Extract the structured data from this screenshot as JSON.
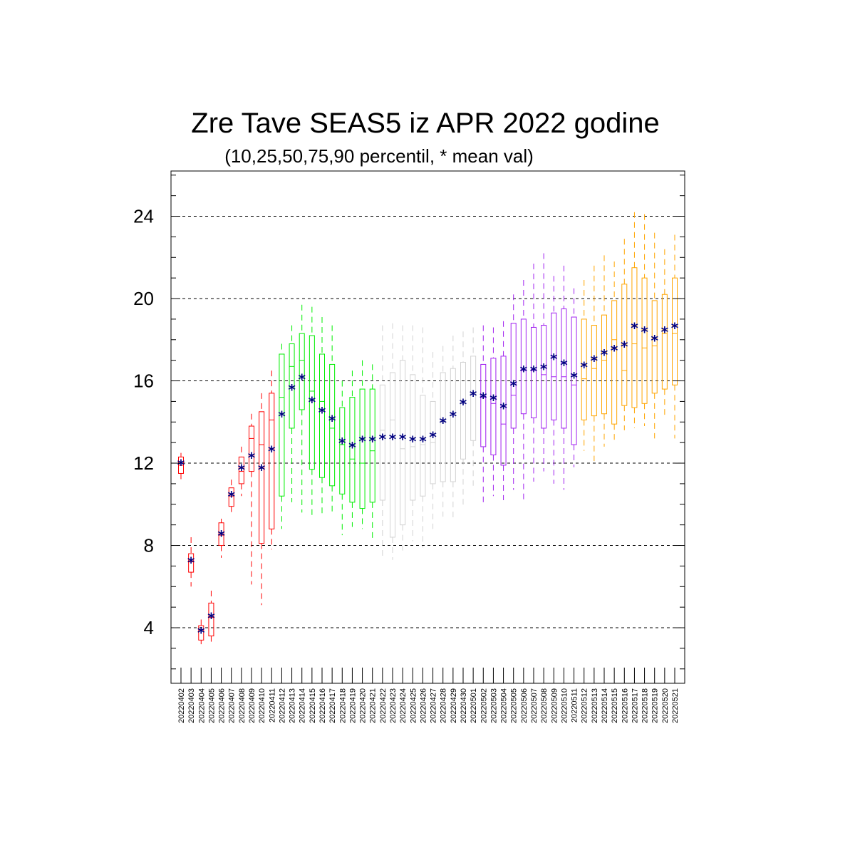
{
  "chart_data": {
    "type": "boxplot",
    "title": "Zre Tave SEAS5 iz APR 2022 godine",
    "subtitle": "(10,25,50,75,90 percentil, * mean val)",
    "xlabel": "",
    "ylabel": "",
    "ylim": [
      1.3,
      26.2
    ],
    "y_ticks": [
      4,
      8,
      12,
      16,
      20,
      24
    ],
    "grid": "dashed horizontal at labeled ticks",
    "categories": [
      "20220402",
      "20220403",
      "20220404",
      "20220405",
      "20220406",
      "20220407",
      "20220408",
      "20220409",
      "20220410",
      "20220411",
      "20220412",
      "20220413",
      "20220414",
      "20220415",
      "20220416",
      "20220417",
      "20220418",
      "20220419",
      "20220420",
      "20220421",
      "20220422",
      "20220423",
      "20220424",
      "20220425",
      "20220426",
      "20220427",
      "20220428",
      "20220429",
      "20220430",
      "20220501",
      "20220502",
      "20220503",
      "20220504",
      "20220505",
      "20220506",
      "20220507",
      "20220508",
      "20220509",
      "20220510",
      "20220511",
      "20220512",
      "20220513",
      "20220514",
      "20220515",
      "20220516",
      "20220517",
      "20220518",
      "20220519",
      "20220520",
      "20220521"
    ],
    "group_colors": {
      "red": "#ff0000",
      "green": "#00ee00",
      "gray": "#d3d3d3",
      "purple": "#a020f0",
      "orange": "#ffa500"
    },
    "mean_marker_color": "#000080",
    "boxes": [
      {
        "date": "20220402",
        "color": "red",
        "p10": 11.2,
        "p25": 11.5,
        "p50": 11.9,
        "p75": 12.3,
        "p90": 12.5,
        "mean": 11.95
      },
      {
        "date": "20220403",
        "color": "red",
        "p10": 6.0,
        "p25": 6.7,
        "p50": 7.2,
        "p75": 7.6,
        "p90": 8.4,
        "mean": 7.2
      },
      {
        "date": "20220404",
        "color": "red",
        "p10": 3.2,
        "p25": 3.4,
        "p50": 3.9,
        "p75": 4.1,
        "p90": 4.4,
        "mean": 3.8
      },
      {
        "date": "20220405",
        "color": "red",
        "p10": 3.2,
        "p25": 3.6,
        "p50": 4.5,
        "p75": 5.2,
        "p90": 5.8,
        "mean": 4.5
      },
      {
        "date": "20220406",
        "color": "red",
        "p10": 7.4,
        "p25": 8.0,
        "p50": 8.5,
        "p75": 9.1,
        "p90": 9.3,
        "mean": 8.5
      },
      {
        "date": "20220407",
        "color": "red",
        "p10": 9.5,
        "p25": 9.9,
        "p50": 10.4,
        "p75": 10.8,
        "p90": 11.2,
        "mean": 10.4
      },
      {
        "date": "20220408",
        "color": "red",
        "p10": 10.4,
        "p25": 11.0,
        "p50": 11.6,
        "p75": 12.3,
        "p90": 12.8,
        "mean": 11.7
      },
      {
        "date": "20220409",
        "color": "red",
        "p10": 6.1,
        "p25": 11.6,
        "p50": 13.2,
        "p75": 13.8,
        "p90": 14.4,
        "mean": 12.3
      },
      {
        "date": "20220410",
        "color": "red",
        "p10": 5.1,
        "p25": 8.1,
        "p50": 12.9,
        "p75": 14.5,
        "p90": 15.4,
        "mean": 11.7
      },
      {
        "date": "20220411",
        "color": "red",
        "p10": 7.8,
        "p25": 8.8,
        "p50": 14.1,
        "p75": 15.4,
        "p90": 16.5,
        "mean": 12.6
      },
      {
        "date": "20220412",
        "color": "green",
        "p10": 8.8,
        "p25": 10.4,
        "p50": 15.2,
        "p75": 17.3,
        "p90": 17.8,
        "mean": 14.3
      },
      {
        "date": "20220413",
        "color": "green",
        "p10": 10.1,
        "p25": 13.7,
        "p50": 16.7,
        "p75": 17.8,
        "p90": 18.7,
        "mean": 15.6
      },
      {
        "date": "20220414",
        "color": "green",
        "p10": 9.6,
        "p25": 14.6,
        "p50": 17.0,
        "p75": 18.3,
        "p90": 19.7,
        "mean": 16.1
      },
      {
        "date": "20220415",
        "color": "green",
        "p10": 9.4,
        "p25": 11.7,
        "p50": 15.5,
        "p75": 18.2,
        "p90": 19.6,
        "mean": 15.0
      },
      {
        "date": "20220416",
        "color": "green",
        "p10": 9.4,
        "p25": 11.3,
        "p50": 15.0,
        "p75": 17.3,
        "p90": 19.1,
        "mean": 14.5
      },
      {
        "date": "20220417",
        "color": "green",
        "p10": 9.6,
        "p25": 10.9,
        "p50": 13.7,
        "p75": 16.8,
        "p90": 18.7,
        "mean": 14.1
      },
      {
        "date": "20220418",
        "color": "green",
        "p10": 8.5,
        "p25": 10.5,
        "p50": 12.9,
        "p75": 14.7,
        "p90": 16.0,
        "mean": 13.0
      },
      {
        "date": "20220419",
        "color": "green",
        "p10": 8.9,
        "p25": 10.1,
        "p50": 12.2,
        "p75": 15.2,
        "p90": 16.5,
        "mean": 12.8
      },
      {
        "date": "20220420",
        "color": "green",
        "p10": 8.8,
        "p25": 9.8,
        "p50": 12.0,
        "p75": 15.6,
        "p90": 17.0,
        "mean": 13.1
      },
      {
        "date": "20220421",
        "color": "green",
        "p10": 8.3,
        "p25": 10.1,
        "p50": 12.6,
        "p75": 15.6,
        "p90": 16.8,
        "mean": 13.1
      },
      {
        "date": "20220422",
        "color": "gray",
        "p10": 7.3,
        "p25": 10.2,
        "p50": 13.6,
        "p75": 15.8,
        "p90": 18.7,
        "mean": 13.2
      },
      {
        "date": "20220423",
        "color": "gray",
        "p10": 7.3,
        "p25": 8.4,
        "p50": 14.1,
        "p75": 16.4,
        "p90": 18.8,
        "mean": 13.2
      },
      {
        "date": "20220424",
        "color": "gray",
        "p10": 7.6,
        "p25": 9.0,
        "p50": 12.7,
        "p75": 17.0,
        "p90": 18.7,
        "mean": 13.2
      },
      {
        "date": "20220425",
        "color": "gray",
        "p10": 8.2,
        "p25": 10.2,
        "p50": 12.8,
        "p75": 16.3,
        "p90": 18.7,
        "mean": 13.1
      },
      {
        "date": "20220426",
        "color": "gray",
        "p10": 7.9,
        "p25": 10.4,
        "p50": 12.9,
        "p75": 15.3,
        "p90": 18.6,
        "mean": 13.1
      },
      {
        "date": "20220427",
        "color": "gray",
        "p10": 8.8,
        "p25": 11.0,
        "p50": 13.0,
        "p75": 15.0,
        "p90": 17.4,
        "mean": 13.3
      },
      {
        "date": "20220428",
        "color": "gray",
        "p10": 9.4,
        "p25": 11.1,
        "p50": 14.0,
        "p75": 16.4,
        "p90": 17.7,
        "mean": 14.0
      },
      {
        "date": "20220429",
        "color": "gray",
        "p10": 9.3,
        "p25": 11.1,
        "p50": 14.4,
        "p75": 16.6,
        "p90": 18.2,
        "mean": 14.3
      },
      {
        "date": "20220430",
        "color": "gray",
        "p10": 9.8,
        "p25": 12.2,
        "p50": 14.9,
        "p75": 16.9,
        "p90": 18.4,
        "mean": 14.9
      },
      {
        "date": "20220501",
        "color": "gray",
        "p10": 10.9,
        "p25": 13.1,
        "p50": 15.4,
        "p75": 17.2,
        "p90": 18.6,
        "mean": 15.3
      },
      {
        "date": "20220502",
        "color": "purple",
        "p10": 10.1,
        "p25": 12.8,
        "p50": 15.2,
        "p75": 16.8,
        "p90": 18.7,
        "mean": 15.2
      },
      {
        "date": "20220503",
        "color": "purple",
        "p10": 10.4,
        "p25": 12.4,
        "p50": 14.9,
        "p75": 17.1,
        "p90": 18.6,
        "mean": 15.1
      },
      {
        "date": "20220504",
        "color": "purple",
        "p10": 10.2,
        "p25": 11.9,
        "p50": 13.9,
        "p75": 17.2,
        "p90": 18.9,
        "mean": 14.7
      },
      {
        "date": "20220505",
        "color": "purple",
        "p10": 10.7,
        "p25": 13.7,
        "p50": 15.3,
        "p75": 18.8,
        "p90": 20.2,
        "mean": 15.8
      },
      {
        "date": "20220506",
        "color": "purple",
        "p10": 10.2,
        "p25": 14.4,
        "p50": 16.5,
        "p75": 19.0,
        "p90": 20.9,
        "mean": 16.5
      },
      {
        "date": "20220507",
        "color": "purple",
        "p10": 11.1,
        "p25": 14.2,
        "p50": 16.5,
        "p75": 18.6,
        "p90": 21.7,
        "mean": 16.5
      },
      {
        "date": "20220508",
        "color": "purple",
        "p10": 11.6,
        "p25": 13.7,
        "p50": 16.3,
        "p75": 18.7,
        "p90": 22.2,
        "mean": 16.6
      },
      {
        "date": "20220509",
        "color": "purple",
        "p10": 11.0,
        "p25": 14.1,
        "p50": 16.2,
        "p75": 19.3,
        "p90": 21.1,
        "mean": 17.1
      },
      {
        "date": "20220510",
        "color": "purple",
        "p10": 10.7,
        "p25": 13.7,
        "p50": 16.2,
        "p75": 19.5,
        "p90": 21.6,
        "mean": 16.8
      },
      {
        "date": "20220511",
        "color": "purple",
        "p10": 11.8,
        "p25": 12.9,
        "p50": 15.8,
        "p75": 19.1,
        "p90": 20.5,
        "mean": 16.2
      },
      {
        "date": "20220512",
        "color": "orange",
        "p10": 12.6,
        "p25": 14.1,
        "p50": 16.1,
        "p75": 19.0,
        "p90": 20.9,
        "mean": 16.7
      },
      {
        "date": "20220513",
        "color": "orange",
        "p10": 12.1,
        "p25": 14.3,
        "p50": 16.6,
        "p75": 18.7,
        "p90": 21.6,
        "mean": 17.0
      },
      {
        "date": "20220514",
        "color": "orange",
        "p10": 12.8,
        "p25": 14.4,
        "p50": 17.0,
        "p75": 19.2,
        "p90": 22.1,
        "mean": 17.3
      },
      {
        "date": "20220515",
        "color": "orange",
        "p10": 13.0,
        "p25": 13.9,
        "p50": 18.0,
        "p75": 19.9,
        "p90": 21.8,
        "mean": 17.5
      },
      {
        "date": "20220516",
        "color": "orange",
        "p10": 13.6,
        "p25": 14.8,
        "p50": 16.5,
        "p75": 20.7,
        "p90": 22.9,
        "mean": 17.7
      },
      {
        "date": "20220517",
        "color": "orange",
        "p10": 13.7,
        "p25": 14.7,
        "p50": 17.8,
        "p75": 21.5,
        "p90": 24.2,
        "mean": 18.6
      },
      {
        "date": "20220518",
        "color": "orange",
        "p10": 13.8,
        "p25": 14.9,
        "p50": 17.6,
        "p75": 21.0,
        "p90": 24.1,
        "mean": 18.4
      },
      {
        "date": "20220519",
        "color": "orange",
        "p10": 13.2,
        "p25": 15.4,
        "p50": 17.7,
        "p75": 19.9,
        "p90": 23.2,
        "mean": 18.0
      },
      {
        "date": "20220520",
        "color": "orange",
        "p10": 14.2,
        "p25": 15.6,
        "p50": 18.3,
        "p75": 20.2,
        "p90": 22.4,
        "mean": 18.4
      },
      {
        "date": "20220521",
        "color": "orange",
        "p10": 13.2,
        "p25": 15.8,
        "p50": 18.3,
        "p75": 21.0,
        "p90": 23.1,
        "mean": 18.6
      }
    ]
  }
}
